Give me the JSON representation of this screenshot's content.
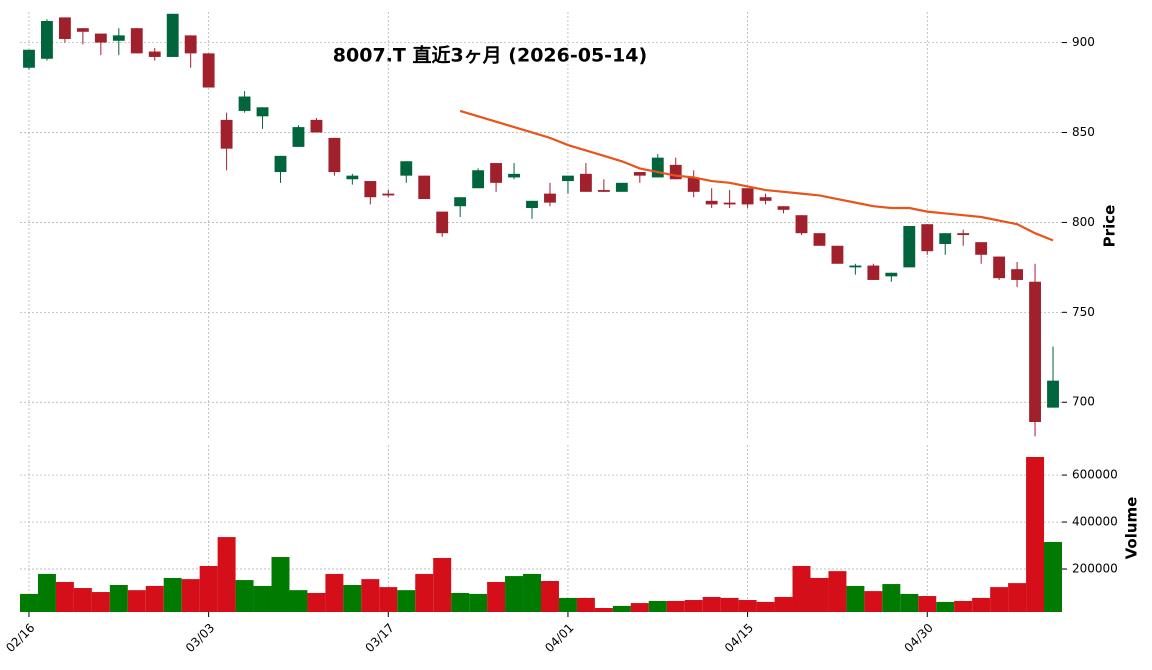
{
  "chart_data": {
    "type": "candlestick",
    "title": "8007.T  直近3ヶ月  (2026-05-14)",
    "categories": [
      "02/16",
      null,
      null,
      null,
      null,
      null,
      null,
      null,
      null,
      null,
      "03/03",
      null,
      null,
      null,
      null,
      null,
      null,
      null,
      null,
      null,
      "03/17",
      null,
      null,
      null,
      null,
      null,
      null,
      null,
      null,
      null,
      "04/01",
      null,
      null,
      null,
      null,
      null,
      null,
      null,
      null,
      null,
      "04/15",
      null,
      null,
      null,
      null,
      null,
      null,
      null,
      null,
      null,
      "04/30",
      null,
      null,
      null,
      null,
      null,
      null,
      null
    ],
    "open": [
      886,
      891,
      914,
      908,
      905,
      901,
      908,
      895,
      892,
      904,
      894,
      857,
      862,
      859,
      828,
      842,
      857,
      847,
      824,
      823,
      816,
      826,
      826,
      806,
      809,
      819,
      833,
      825,
      808,
      816,
      823,
      827,
      818,
      817,
      828,
      825,
      832,
      825,
      812,
      811,
      819,
      814,
      809,
      804,
      794,
      787,
      775,
      776,
      770,
      775,
      799,
      788,
      794,
      789,
      781,
      774,
      767,
      697
    ],
    "high": [
      896,
      913,
      914,
      908,
      905,
      908,
      908,
      897,
      916,
      904,
      894,
      861,
      873,
      864,
      837,
      854,
      858,
      847,
      827,
      823,
      818,
      834,
      826,
      806,
      814,
      830,
      833,
      833,
      812,
      822,
      826,
      833,
      824,
      822,
      828,
      838,
      836,
      829,
      819,
      818,
      819,
      816,
      809,
      804,
      794,
      787,
      777,
      777,
      772,
      798,
      799,
      794,
      796,
      789,
      781,
      778,
      777,
      731
    ],
    "low": [
      885,
      890,
      900,
      899,
      893,
      893,
      894,
      890,
      892,
      886,
      875,
      829,
      861,
      852,
      822,
      842,
      850,
      826,
      821,
      810,
      814,
      822,
      813,
      792,
      803,
      819,
      817,
      824,
      802,
      809,
      816,
      817,
      817,
      817,
      822,
      825,
      824,
      814,
      808,
      808,
      808,
      810,
      805,
      793,
      787,
      777,
      771,
      768,
      767,
      775,
      782,
      782,
      787,
      777,
      768,
      764,
      681,
      697
    ],
    "close": [
      896,
      912,
      902,
      906,
      900,
      904,
      894,
      892,
      916,
      894,
      875,
      841,
      870,
      864,
      837,
      853,
      850,
      828,
      826,
      814,
      815,
      834,
      813,
      794,
      814,
      829,
      822,
      827,
      812,
      811,
      826,
      817,
      817,
      822,
      826,
      836,
      824,
      817,
      810,
      810,
      810,
      812,
      807,
      794,
      787,
      777,
      776,
      768,
      772,
      798,
      784,
      794,
      793,
      782,
      769,
      768,
      689,
      712
    ],
    "up_color": "#00643c",
    "down_color": "#a0202c",
    "ylim": [
      679,
      917
    ],
    "yticks": [
      700,
      750,
      800,
      850,
      900
    ],
    "ylabel": "Price",
    "grid": true,
    "moving_average": {
      "color": "#e8541a",
      "values": [
        null,
        null,
        null,
        null,
        null,
        null,
        null,
        null,
        null,
        null,
        null,
        null,
        null,
        null,
        null,
        null,
        null,
        null,
        null,
        null,
        null,
        null,
        null,
        null,
        862,
        859,
        856,
        853,
        850,
        847,
        843,
        840,
        837,
        834,
        830,
        828,
        826,
        825,
        823,
        822,
        820,
        818,
        817,
        816,
        815,
        813,
        811,
        809,
        808,
        808,
        806,
        805,
        804,
        803,
        801,
        799,
        794,
        790
      ]
    },
    "volume": {
      "values": [
        94000,
        179000,
        145000,
        119000,
        102000,
        132000,
        110000,
        128000,
        162000,
        157000,
        213000,
        336000,
        153000,
        128000,
        251000,
        110000,
        98000,
        179000,
        132000,
        157000,
        123000,
        110000,
        179000,
        247000,
        98000,
        94000,
        145000,
        170000,
        179000,
        149000,
        77000,
        77000,
        34000,
        43000,
        55000,
        64000,
        64000,
        68000,
        81000,
        77000,
        68000,
        60000,
        81000,
        213000,
        162000,
        191000,
        128000,
        106000,
        136000,
        94000,
        85000,
        60000,
        64000,
        77000,
        123000,
        140000,
        677000,
        315000
      ],
      "up_color": "#007a00",
      "down_color": "#d40f19",
      "ylim": [
        17000,
        728000
      ],
      "yticks": [
        200000,
        400000,
        600000
      ],
      "ylabel": "Volume"
    }
  }
}
